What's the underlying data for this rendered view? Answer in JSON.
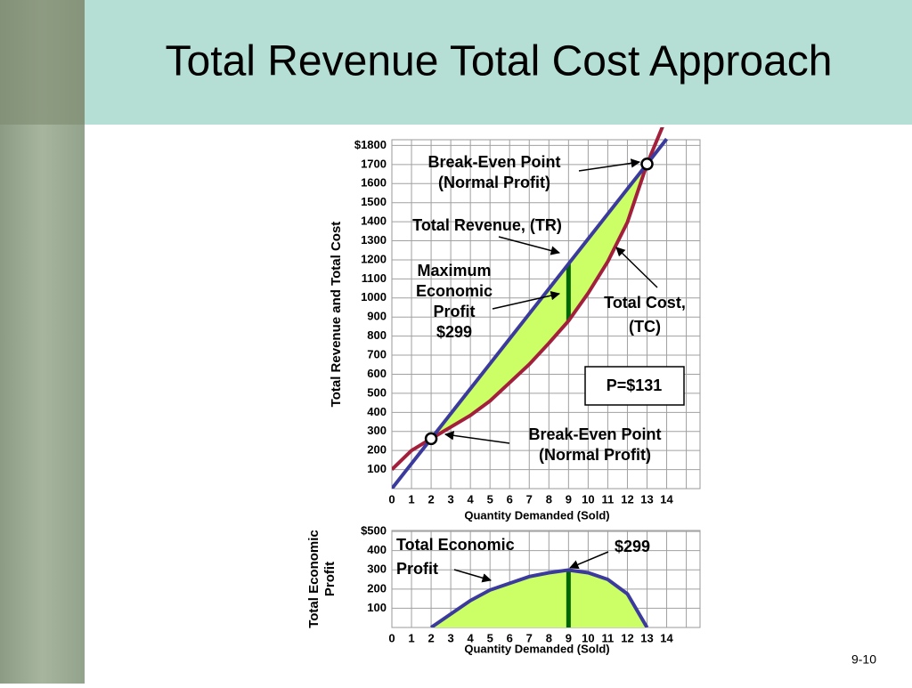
{
  "slide": {
    "title": "Total Revenue Total Cost Approach",
    "page_number": "9-10"
  },
  "chart_data": [
    {
      "type": "line",
      "x": [
        0,
        1,
        2,
        3,
        4,
        5,
        6,
        7,
        8,
        9,
        10,
        11,
        12,
        13,
        14
      ],
      "series": [
        {
          "name": "Total Revenue, (TR)",
          "color": "#3b3b9e",
          "values": [
            0,
            131,
            262,
            393,
            524,
            655,
            786,
            917,
            1048,
            1179,
            1310,
            1441,
            1572,
            1703,
            1834
          ]
        },
        {
          "name": "Total Cost, (TC)",
          "color": "#a3203c",
          "values": [
            100,
            200,
            262,
            323,
            384,
            460,
            556,
            652,
            763,
            880,
            1025,
            1191,
            1397,
            1703,
            1950
          ]
        }
      ],
      "fill_color": "#ccff66",
      "xlim": [
        0,
        15.7
      ],
      "xticks": [
        0,
        1,
        2,
        3,
        4,
        5,
        6,
        7,
        8,
        9,
        10,
        11,
        12,
        13,
        14
      ],
      "ylim": [
        0,
        1830
      ],
      "yticks": [
        100,
        200,
        300,
        400,
        500,
        600,
        700,
        800,
        900,
        1000,
        1100,
        1200,
        1300,
        1400,
        1500,
        1600,
        1700,
        {
          "value": 1800,
          "label": "$1800"
        }
      ],
      "grid": true,
      "xlabel": "Quantity Demanded (Sold)",
      "ylabel": [
        "Total Revenue and Total Cost"
      ],
      "annotations": [
        {
          "lines": [
            "Break-Even Point",
            "(Normal Profit)"
          ]
        },
        {
          "lines": [
            "Total Revenue, (TR)"
          ]
        },
        {
          "lines": [
            "Maximum",
            "Economic",
            "Profit",
            "$299"
          ]
        },
        {
          "lines": [
            "Total Cost,",
            "(TC)"
          ]
        },
        {
          "lines": [
            "P=$131"
          ]
        },
        {
          "lines": [
            "Break-Even Point",
            "(Normal Profit)"
          ]
        }
      ]
    },
    {
      "type": "line",
      "x": [
        0,
        1,
        2,
        3,
        4,
        5,
        6,
        7,
        8,
        9,
        10,
        11,
        12,
        13,
        14
      ],
      "series": [
        {
          "name": "Total Economic Profit",
          "color": "#3b3b9e",
          "values": [
            null,
            null,
            0,
            70,
            140,
            195,
            230,
            265,
            285,
            299,
            285,
            250,
            175,
            0,
            null
          ]
        }
      ],
      "fill_color": "#ccff66",
      "xlim": [
        0,
        15.7
      ],
      "xticks": [
        0,
        1,
        2,
        3,
        4,
        5,
        6,
        7,
        8,
        9,
        10,
        11,
        12,
        13,
        14
      ],
      "ylim": [
        0,
        505
      ],
      "yticks": [
        100,
        200,
        300,
        400,
        {
          "value": 500,
          "label": "$500"
        }
      ],
      "grid": true,
      "xlabel": "Quantity Demanded (Sold)",
      "ylabel": [
        "Total Economic",
        "Profit"
      ],
      "annotations": [
        {
          "lines": [
            "Total Economic",
            "Profit"
          ]
        },
        {
          "lines": [
            "$299"
          ]
        }
      ]
    }
  ]
}
